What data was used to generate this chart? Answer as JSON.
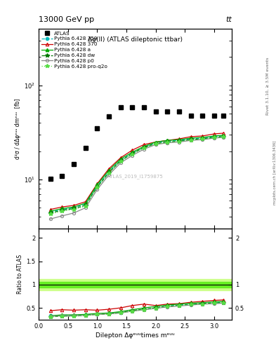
{
  "title_top": "13000 GeV pp",
  "title_top_right": "tt",
  "plot_title": "Δφ(ll) (ATLAS dileptonic ttbar)",
  "ylabel_main": "d²σ / dΔφᵉᵘᵘ dmᵉᵘᵘ  [fb]",
  "ylabel_ratio": "Ratio to ATLAS",
  "xlabel": "Dilepton Δφᵉᵘᵘtimes mᵉᵘᵘ",
  "watermark": "ATLAS_2019_I1759875",
  "right_label": "mcplots.cern.ch [arXiv:1306.3436]",
  "rivet_label": "Rivet 3.1.10, ≥ 3.5M events",
  "atlas_x": [
    0.2,
    0.4,
    0.6,
    0.8,
    1.0,
    1.2,
    1.4,
    1.6,
    1.8,
    2.0,
    2.2,
    2.4,
    2.6,
    2.8,
    3.0,
    3.15
  ],
  "atlas_y": [
    10.2,
    10.8,
    14.5,
    21.5,
    35.0,
    47.0,
    58.0,
    58.0,
    58.0,
    53.0,
    53.0,
    53.0,
    48.0,
    48.0,
    48.0,
    48.0
  ],
  "x_common": [
    0.2,
    0.4,
    0.6,
    0.8,
    1.0,
    1.2,
    1.4,
    1.6,
    1.8,
    2.0,
    2.2,
    2.4,
    2.6,
    2.8,
    3.0,
    3.15
  ],
  "pythia_359_y": [
    4.5,
    4.8,
    5.0,
    5.5,
    8.5,
    12.0,
    16.0,
    19.0,
    22.0,
    24.5,
    25.5,
    26.0,
    27.0,
    27.5,
    28.5,
    29.0
  ],
  "pythia_370_y": [
    4.8,
    5.1,
    5.3,
    5.8,
    9.0,
    13.0,
    17.0,
    20.5,
    23.5,
    25.0,
    26.0,
    27.0,
    28.5,
    29.0,
    30.5,
    31.0
  ],
  "pythia_a_y": [
    4.6,
    4.9,
    5.1,
    5.6,
    8.8,
    12.5,
    16.5,
    19.5,
    22.5,
    25.0,
    26.0,
    26.5,
    27.5,
    28.0,
    29.0,
    29.5
  ],
  "pythia_dw_y": [
    4.4,
    4.7,
    4.9,
    5.3,
    8.3,
    11.8,
    15.8,
    18.8,
    22.0,
    24.0,
    25.0,
    25.5,
    26.5,
    27.0,
    28.0,
    28.5
  ],
  "pythia_p0_y": [
    3.8,
    4.1,
    4.4,
    5.0,
    7.8,
    11.2,
    15.0,
    18.0,
    21.0,
    23.5,
    24.5,
    25.0,
    26.0,
    26.5,
    27.5,
    28.0
  ],
  "pythia_prq_y": [
    4.3,
    4.6,
    4.8,
    5.2,
    8.2,
    11.6,
    15.5,
    18.5,
    21.5,
    23.8,
    24.8,
    25.3,
    26.3,
    26.8,
    27.8,
    28.3
  ],
  "ratio_359_y": [
    0.33,
    0.34,
    0.34,
    0.35,
    0.37,
    0.38,
    0.4,
    0.44,
    0.47,
    0.5,
    0.54,
    0.56,
    0.58,
    0.6,
    0.61,
    0.62
  ],
  "ratio_370_y": [
    0.44,
    0.46,
    0.45,
    0.46,
    0.45,
    0.47,
    0.5,
    0.55,
    0.58,
    0.55,
    0.58,
    0.59,
    0.62,
    0.64,
    0.66,
    0.67
  ],
  "ratio_a_y": [
    0.33,
    0.35,
    0.35,
    0.36,
    0.38,
    0.39,
    0.42,
    0.46,
    0.5,
    0.53,
    0.56,
    0.58,
    0.6,
    0.61,
    0.63,
    0.64
  ],
  "ratio_dw_y": [
    0.31,
    0.32,
    0.33,
    0.34,
    0.36,
    0.37,
    0.4,
    0.44,
    0.47,
    0.5,
    0.53,
    0.55,
    0.57,
    0.59,
    0.6,
    0.61
  ],
  "ratio_p0_y": [
    0.32,
    0.33,
    0.33,
    0.34,
    0.36,
    0.37,
    0.39,
    0.43,
    0.46,
    0.49,
    0.52,
    0.54,
    0.56,
    0.58,
    0.59,
    0.6
  ],
  "ratio_prq_y": [
    0.31,
    0.32,
    0.32,
    0.33,
    0.36,
    0.37,
    0.39,
    0.43,
    0.46,
    0.49,
    0.53,
    0.55,
    0.57,
    0.58,
    0.6,
    0.61
  ],
  "color_359": "#00BBBB",
  "color_370": "#CC0000",
  "color_a": "#00AA00",
  "color_dw": "#007700",
  "color_p0": "#888888",
  "color_prq": "#55DD44",
  "band_inner_color": "#66EE22",
  "band_outer_color": "#CCFF88",
  "ylim_main": [
    3.0,
    400
  ],
  "ylim_ratio": [
    0.25,
    2.2
  ],
  "xlim": [
    0.0,
    3.3
  ]
}
